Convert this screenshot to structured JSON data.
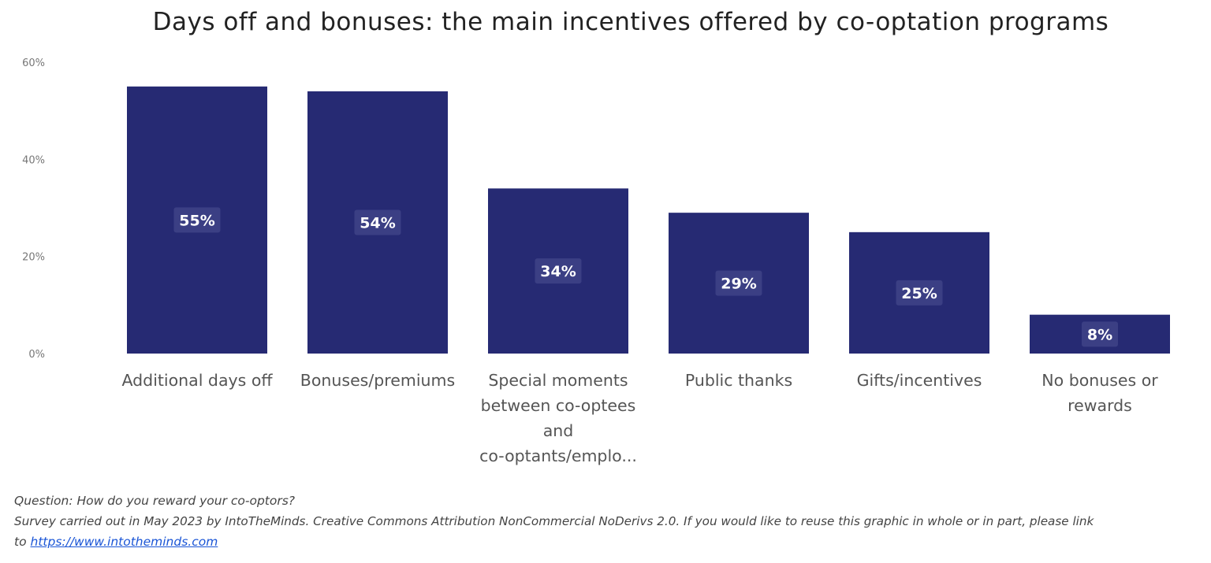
{
  "chart_data": {
    "type": "bar",
    "title": "Days off and bonuses: the main incentives offered by co-optation programs",
    "categories": [
      [
        "Additional days off"
      ],
      [
        "Bonuses/premiums"
      ],
      [
        "Special moments",
        "between co-optees",
        "and",
        "co-optants/emplo..."
      ],
      [
        "Public thanks"
      ],
      [
        "Gifts/incentives"
      ],
      [
        "No bonuses or",
        "rewards"
      ]
    ],
    "values": [
      55,
      54,
      34,
      29,
      25,
      8
    ],
    "data_labels": [
      "55%",
      "54%",
      "34%",
      "29%",
      "25%",
      "8%"
    ],
    "yticks": [
      "0%",
      "20%",
      "40%",
      "60%"
    ],
    "ylim": [
      0,
      60
    ],
    "grid": false,
    "bar_color": "#262a73"
  },
  "footer": {
    "question": "Question: How do you reward your co-optors?",
    "source": "Survey carried out in May 2023 by IntoTheMinds. Creative Commons Attribution NonCommercial NoDerivs 2.0. If you would like to reuse this graphic in whole or in part, please link",
    "link_prefix": "to ",
    "link": "https://www.intotheminds.com"
  }
}
